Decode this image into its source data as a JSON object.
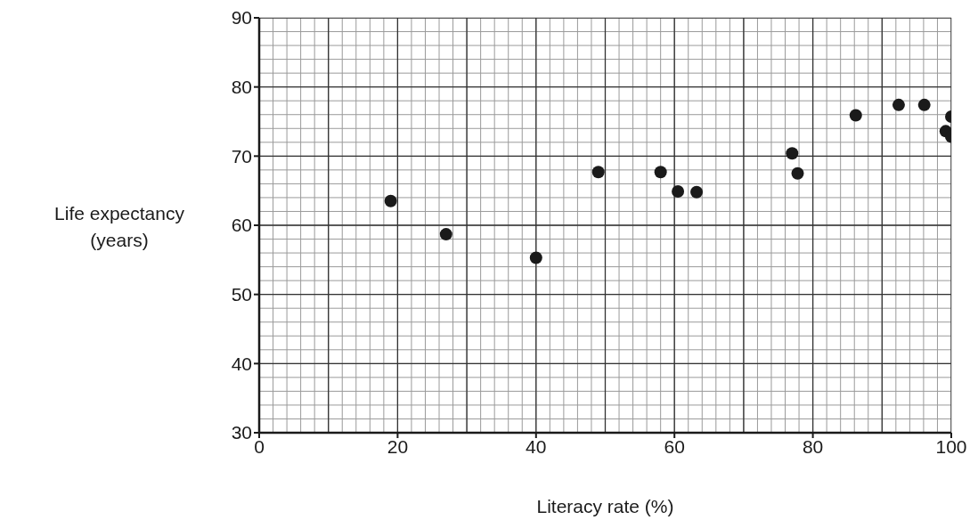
{
  "chart_data": {
    "type": "scatter",
    "xlabel": "Literacy rate (%)",
    "ylabel": "Life expectancy (years)",
    "x": [
      19,
      27,
      40,
      49,
      58,
      60.5,
      63.2,
      77,
      77.8,
      86.2,
      92.4,
      96.1,
      100,
      99.2,
      100
    ],
    "values": [
      63.5,
      58.7,
      55.3,
      67.7,
      67.7,
      64.9,
      64.8,
      70.4,
      67.5,
      75.9,
      77.4,
      77.4,
      75.7,
      73.6,
      72.8
    ],
    "color": "#1a1a1a",
    "marker": "circle",
    "xlim": [
      0,
      100
    ],
    "xticks": [
      0,
      20,
      40,
      60,
      80,
      100
    ],
    "ylim": [
      30,
      90
    ],
    "yticks": [
      30,
      40,
      50,
      60,
      70,
      80,
      90
    ],
    "grid": true
  }
}
